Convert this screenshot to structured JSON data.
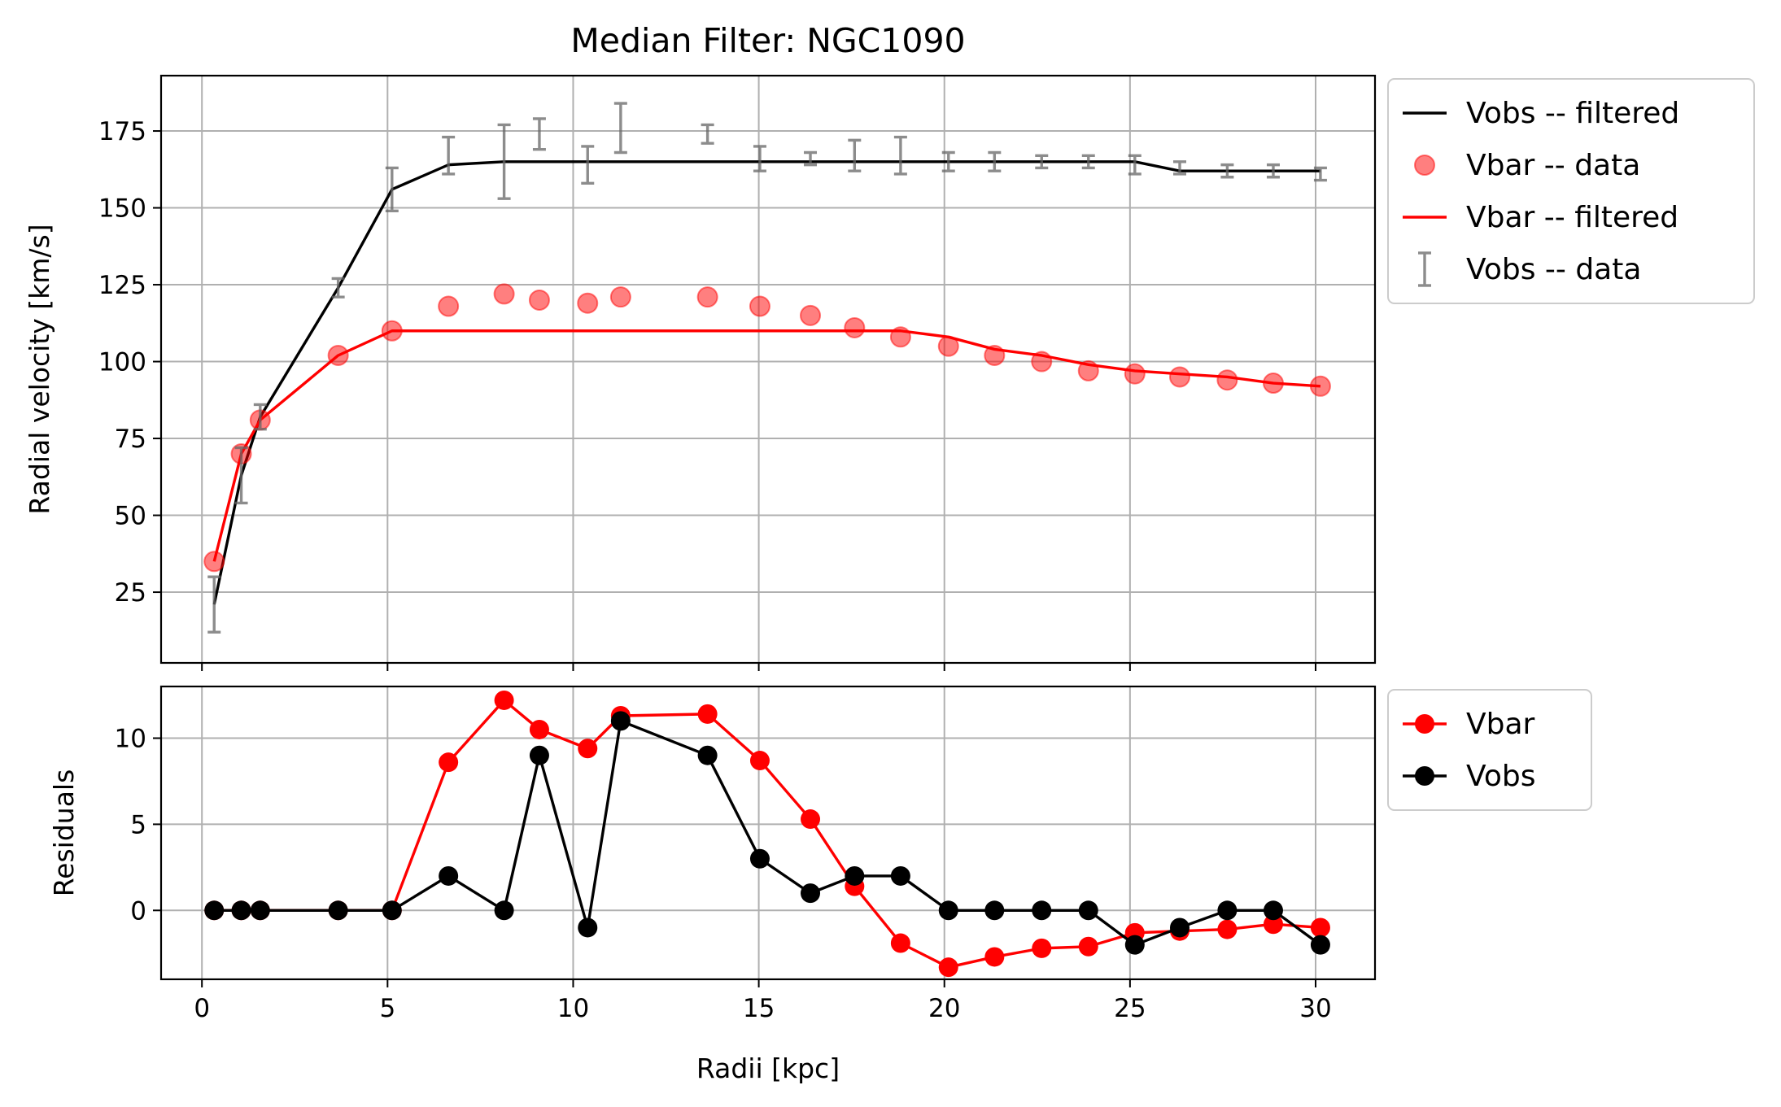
{
  "chart_data": [
    {
      "type": "line",
      "title": "Median Filter: NGC1090",
      "xlabel": "",
      "ylabel": "Radial velocity [km/s]",
      "xlim": [
        -1.1,
        31.6
      ],
      "ylim": [
        2,
        193
      ],
      "xticks": [
        0,
        5,
        10,
        15,
        20,
        25,
        30
      ],
      "yticks": [
        25,
        50,
        75,
        100,
        125,
        150,
        175
      ],
      "grid": true,
      "legend_position": "outside-top-right",
      "x": [
        0.33,
        1.06,
        1.57,
        3.67,
        5.12,
        6.64,
        8.14,
        9.09,
        10.39,
        11.28,
        13.62,
        15.03,
        16.39,
        17.58,
        18.82,
        20.11,
        21.35,
        22.62,
        23.88,
        25.13,
        26.34,
        27.62,
        28.86,
        30.13
      ],
      "series": [
        {
          "name": "Vobs -- filtered",
          "kind": "line",
          "color": "#000000",
          "values": [
            21,
            63,
            82,
            124,
            156,
            164,
            165,
            165,
            165,
            165,
            165,
            165,
            165,
            165,
            165,
            165,
            165,
            165,
            165,
            165,
            162,
            162,
            162,
            162
          ]
        },
        {
          "name": "Vbar -- data",
          "kind": "scatter",
          "color": "#ff0000",
          "values": [
            35,
            70,
            81,
            102,
            110,
            118,
            122,
            120,
            119,
            121,
            121,
            118,
            115,
            111,
            108,
            105,
            102,
            100,
            97,
            96,
            95,
            94,
            93,
            92
          ]
        },
        {
          "name": "Vbar -- filtered",
          "kind": "line",
          "color": "#ff0000",
          "values": [
            35,
            70,
            81,
            102,
            110,
            110,
            110,
            110,
            110,
            110,
            110,
            110,
            110,
            110,
            110,
            108,
            104,
            102,
            99,
            97,
            96,
            95,
            93,
            92
          ]
        },
        {
          "name": "Vobs -- data",
          "kind": "errorbar",
          "color": "#666666",
          "values": [
            21,
            63,
            82,
            124,
            156,
            167,
            165,
            174,
            164,
            176,
            174,
            166,
            166,
            167,
            167,
            165,
            165,
            165,
            165,
            164,
            163,
            162,
            162,
            161
          ],
          "errors": [
            9,
            9,
            4,
            3,
            7,
            6,
            12,
            5,
            6,
            8,
            3,
            4,
            2,
            5,
            6,
            3,
            3,
            2,
            2,
            3,
            2,
            2,
            2,
            2
          ]
        }
      ]
    },
    {
      "type": "line",
      "title": "",
      "xlabel": "Radii [kpc]",
      "ylabel": "Residuals",
      "xlim": [
        -1.1,
        31.6
      ],
      "ylim": [
        -4,
        13
      ],
      "xticks": [
        0,
        5,
        10,
        15,
        20,
        25,
        30
      ],
      "yticks": [
        0,
        5,
        10
      ],
      "grid": true,
      "legend_position": "outside-top-right",
      "x": [
        0.33,
        1.06,
        1.57,
        3.67,
        5.12,
        6.64,
        8.14,
        9.09,
        10.39,
        11.28,
        13.62,
        15.03,
        16.39,
        17.58,
        18.82,
        20.11,
        21.35,
        22.62,
        23.88,
        25.13,
        26.34,
        27.62,
        28.86,
        30.13
      ],
      "series": [
        {
          "name": "Vbar",
          "kind": "line-marker",
          "color": "#ff0000",
          "values": [
            0,
            0,
            0,
            0,
            0,
            8.6,
            12.2,
            10.5,
            9.4,
            11.3,
            11.4,
            8.7,
            5.3,
            1.4,
            -1.9,
            -3.3,
            -2.7,
            -2.2,
            -2.1,
            -1.3,
            -1.2,
            -1.1,
            -0.8,
            -1.0
          ]
        },
        {
          "name": "Vobs",
          "kind": "line-marker",
          "color": "#000000",
          "values": [
            0,
            0,
            0,
            0,
            0,
            2,
            0,
            9,
            -1,
            11,
            9,
            3,
            1,
            2,
            2,
            0,
            0,
            0,
            0,
            -2,
            -1,
            0,
            0,
            -2
          ]
        }
      ]
    }
  ]
}
